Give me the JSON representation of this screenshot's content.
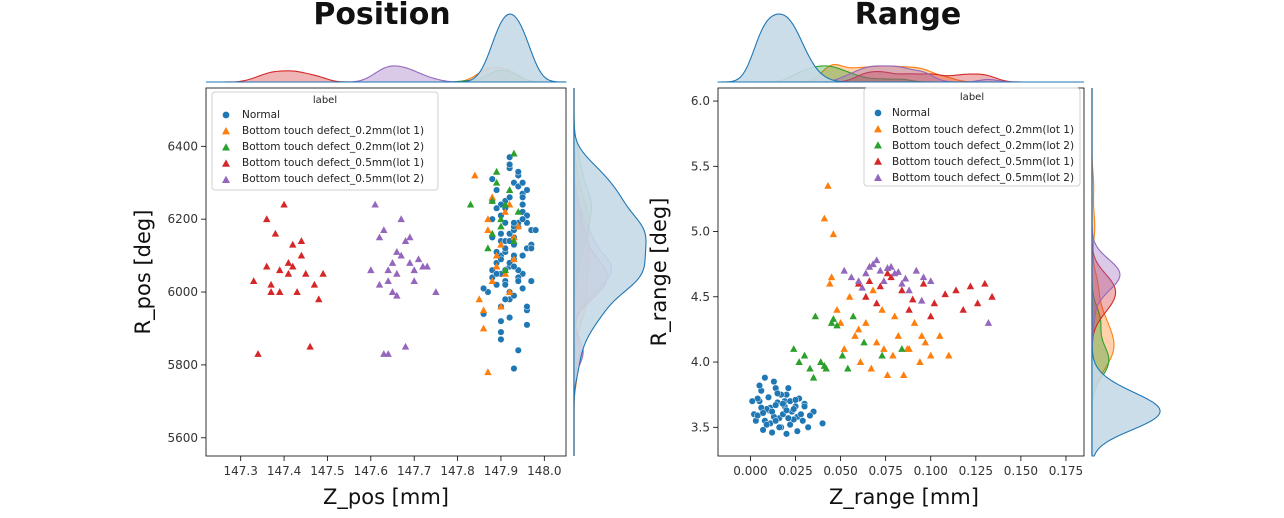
{
  "colors": {
    "normal": "#1f77b4",
    "bt02_lot1": "#ff7f0e",
    "bt02_lot2": "#2ca02c",
    "bt05_lot1": "#d62728",
    "bt05_lot2": "#9467bd",
    "kde_fill": "#c6d9e8"
  },
  "chart_data": [
    {
      "type": "scatter",
      "title": "Position",
      "xlabel": "Z_pos [mm]",
      "ylabel": "R_pos [deg]",
      "xlim": [
        147.22,
        148.05
      ],
      "ylim": [
        5550,
        6560
      ],
      "xticks": [
        147.3,
        147.4,
        147.5,
        147.6,
        147.7,
        147.8,
        147.9,
        148.0
      ],
      "xtick_labels": [
        "147.3",
        "147.4",
        "147.5",
        "147.6",
        "147.7",
        "147.8",
        "147.9",
        "148.0"
      ],
      "yticks": [
        5600,
        5800,
        6000,
        6200,
        6400
      ],
      "ytick_labels": [
        "5600",
        "5800",
        "6000",
        "6200",
        "6400"
      ],
      "legend": {
        "title": "label",
        "position": "top-left",
        "entries": [
          "Normal",
          "Bottom touch defect_0.2mm(lot 1)",
          "Bottom touch defect_0.2mm(lot 2)",
          "Bottom touch defect_0.5mm(lot 1)",
          "Bottom touch defect_0.5mm(lot 2)"
        ]
      },
      "series": [
        {
          "name": "Normal",
          "color_key": "normal",
          "marker": "circle",
          "x": [
            147.9,
            147.93,
            147.95,
            147.88,
            147.92,
            147.96,
            147.91,
            147.89,
            147.94,
            147.97,
            147.9,
            147.92,
            147.95,
            147.88,
            147.93,
            147.91,
            147.96,
            147.94,
            147.89,
            147.92,
            147.95,
            147.9,
            147.93,
            147.97,
            147.91,
            147.88,
            147.94,
            147.92,
            147.96,
            147.9,
            147.93,
            147.95,
            147.89,
            147.91,
            147.94,
            147.92,
            147.9,
            147.96,
            147.93,
            147.88,
            147.95,
            147.91,
            147.94,
            147.89,
            147.92,
            147.97,
            147.9,
            147.93,
            147.95,
            147.91,
            147.87,
            147.86,
            147.88,
            147.93,
            147.96,
            147.92,
            147.9,
            147.94,
            147.91,
            147.89,
            147.95,
            147.92,
            147.98,
            147.93,
            147.9,
            147.96,
            147.91,
            147.94,
            147.88,
            147.92,
            147.86,
            147.9,
            147.93,
            147.95,
            147.91,
            147.97,
            147.89,
            147.92,
            147.94,
            147.9,
            147.93,
            147.88,
            147.95,
            147.91,
            147.96,
            147.92,
            147.9,
            147.94,
            147.93,
            147.89
          ],
          "y": [
            6100,
            6150,
            6050,
            6200,
            6000,
            6120,
            6250,
            6080,
            6180,
            6030,
            6140,
            5980,
            6220,
            6060,
            6300,
            6110,
            5950,
            6190,
            6020,
            6160,
            6270,
            5920,
            6090,
            6130,
            6230,
            6040,
            6320,
            6070,
            6210,
            5890,
            6170,
            6010,
            6280,
            6120,
            6060,
            6340,
            5960,
            6190,
            6100,
            6150,
            6240,
            6030,
            6290,
            6080,
            6350,
            6170,
            5870,
            5990,
            6260,
            6140,
            6000,
            5940,
            6310,
            5790,
            5910,
            6370,
            6050,
            5840,
            6020,
            6110,
            6200,
            6080,
            6170,
            6130,
            6240,
            5960,
            6190,
            6040,
            6150,
            6260,
            6010,
            6090,
            6180,
            6300,
            6060,
            6120,
            6230,
            5930,
            6330,
            6160,
            6070,
            6250,
            6100,
            5980,
            6280,
            6140,
            6210,
            6030,
            6190,
            6050
          ]
        },
        {
          "name": "Bottom touch defect_0.2mm(lot 1)",
          "color_key": "bt02_lot1",
          "marker": "triangle",
          "x": [
            147.87,
            147.89,
            147.91,
            147.86,
            147.93,
            147.88,
            147.9,
            147.92,
            147.84,
            147.89,
            147.94,
            147.87,
            147.91,
            147.86,
            147.9,
            147.88,
            147.93,
            147.85,
            147.87,
            147.92
          ],
          "y": [
            6200,
            6100,
            6050,
            5900,
            6150,
            6260,
            5960,
            6000,
            6320,
            6070,
            6180,
            5780,
            6220,
            5950,
            6130,
            6030,
            6090,
            5980,
            6170,
            6240
          ]
        },
        {
          "name": "Bottom touch defect_0.2mm(lot 2)",
          "color_key": "bt02_lot2",
          "marker": "triangle",
          "x": [
            147.89,
            147.91,
            147.88,
            147.93,
            147.9,
            147.92,
            147.87,
            147.94,
            147.89,
            147.91,
            147.93,
            147.88,
            147.9,
            147.83
          ],
          "y": [
            6300,
            6240,
            6160,
            6380,
            6200,
            6280,
            6120,
            6220,
            6330,
            6060,
            6140,
            6250,
            6180,
            6240
          ]
        },
        {
          "name": "Bottom touch defect_0.5mm(lot 1)",
          "color_key": "bt05_lot1",
          "marker": "triangle",
          "x": [
            147.33,
            147.34,
            147.36,
            147.37,
            147.38,
            147.39,
            147.4,
            147.41,
            147.42,
            147.43,
            147.44,
            147.45,
            147.46,
            147.47,
            147.48,
            147.49,
            147.36,
            147.37,
            147.39,
            147.42,
            147.44,
            147.41
          ],
          "y": [
            6030,
            5830,
            6200,
            6000,
            6160,
            6060,
            6240,
            6080,
            6070,
            6000,
            6140,
            6050,
            5850,
            6020,
            5980,
            6050,
            6070,
            6020,
            6000,
            6130,
            6100,
            6050
          ]
        },
        {
          "name": "Bottom touch defect_0.5mm(lot 2)",
          "color_key": "bt05_lot2",
          "marker": "triangle",
          "x": [
            147.6,
            147.61,
            147.62,
            147.63,
            147.64,
            147.65,
            147.66,
            147.67,
            147.68,
            147.69,
            147.7,
            147.71,
            147.72,
            147.73,
            147.75,
            147.64,
            147.66,
            147.68,
            147.63,
            147.65,
            147.67,
            147.69,
            147.62,
            147.66,
            147.7,
            147.64
          ],
          "y": [
            6060,
            6240,
            6020,
            6170,
            5830,
            6080,
            6050,
            6200,
            6140,
            6080,
            6060,
            6090,
            6070,
            6070,
            6000,
            6030,
            6110,
            5850,
            5830,
            6000,
            6100,
            6150,
            6150,
            5990,
            6030,
            6060
          ]
        }
      ],
      "marginal": "kde"
    },
    {
      "type": "scatter",
      "title": "Range",
      "xlabel": "Z_range [mm]",
      "ylabel": "R_range [deg]",
      "xlim": [
        -0.018,
        0.185
      ],
      "ylim": [
        3.28,
        6.1
      ],
      "xticks": [
        0.0,
        0.025,
        0.05,
        0.075,
        0.1,
        0.125,
        0.15,
        0.175
      ],
      "xtick_labels": [
        "0.000",
        "0.025",
        "0.050",
        "0.075",
        "0.100",
        "0.125",
        "0.150",
        "0.175"
      ],
      "yticks": [
        3.5,
        4.0,
        4.5,
        5.0,
        5.5,
        6.0
      ],
      "ytick_labels": [
        "3.5",
        "4.0",
        "4.5",
        "5.0",
        "5.5",
        "6.0"
      ],
      "legend": {
        "title": "label",
        "position": "top-right",
        "entries": [
          "Normal",
          "Bottom touch defect_0.2mm(lot 1)",
          "Bottom touch defect_0.2mm(lot 2)",
          "Bottom touch defect_0.5mm(lot 1)",
          "Bottom touch defect_0.5mm(lot 2)"
        ]
      },
      "series": [
        {
          "name": "Normal",
          "color_key": "normal",
          "marker": "circle",
          "x": [
            0.002,
            0.005,
            0.008,
            0.011,
            0.014,
            0.017,
            0.02,
            0.023,
            0.026,
            0.03,
            0.004,
            0.007,
            0.01,
            0.013,
            0.016,
            0.019,
            0.022,
            0.025,
            0.028,
            0.032,
            0.003,
            0.006,
            0.009,
            0.012,
            0.015,
            0.018,
            0.021,
            0.024,
            0.027,
            0.035,
            0.001,
            0.004,
            0.008,
            0.011,
            0.014,
            0.017,
            0.02,
            0.023,
            0.029,
            0.04,
            0.006,
            0.01,
            0.013,
            0.016,
            0.019,
            0.022,
            0.026,
            0.009,
            0.012,
            0.015,
            0.018,
            0.021,
            0.024,
            0.007,
            0.005,
            0.03,
            0.033,
            0.025,
            0.02,
            0.014
          ],
          "y": [
            3.6,
            3.7,
            3.55,
            3.65,
            3.8,
            3.5,
            3.75,
            3.62,
            3.58,
            3.68,
            3.72,
            3.48,
            3.63,
            3.85,
            3.57,
            3.7,
            3.52,
            3.66,
            3.6,
            3.5,
            3.55,
            3.78,
            3.64,
            3.46,
            3.69,
            3.6,
            3.8,
            3.56,
            3.72,
            3.62,
            3.7,
            3.59,
            3.88,
            3.53,
            3.67,
            3.75,
            3.45,
            3.62,
            3.55,
            3.53,
            3.65,
            3.73,
            3.58,
            3.5,
            3.66,
            3.7,
            3.47,
            3.52,
            3.62,
            3.76,
            3.68,
            3.57,
            3.64,
            3.61,
            3.82,
            3.66,
            3.59,
            3.71,
            3.63,
            3.55
          ]
        },
        {
          "name": "Bottom touch defect_0.2mm(lot 1)",
          "color_key": "bt02_lot1",
          "marker": "triangle",
          "x": [
            0.043,
            0.046,
            0.041,
            0.044,
            0.048,
            0.052,
            0.055,
            0.058,
            0.061,
            0.064,
            0.067,
            0.07,
            0.073,
            0.076,
            0.079,
            0.082,
            0.085,
            0.088,
            0.091,
            0.094,
            0.097,
            0.1,
            0.105,
            0.11,
            0.045,
            0.05,
            0.06,
            0.068,
            0.074,
            0.08,
            0.087,
            0.095
          ],
          "y": [
            5.35,
            4.98,
            5.1,
            4.6,
            4.4,
            4.1,
            4.5,
            4.2,
            4.0,
            4.3,
            3.95,
            4.15,
            4.4,
            3.9,
            4.05,
            4.2,
            3.9,
            4.1,
            4.3,
            4.0,
            4.15,
            4.05,
            4.2,
            4.05,
            4.65,
            4.3,
            4.25,
            4.55,
            4.1,
            4.35,
            4.1,
            4.2
          ]
        },
        {
          "name": "Bottom touch defect_0.2mm(lot 2)",
          "color_key": "bt02_lot2",
          "marker": "triangle",
          "x": [
            0.024,
            0.027,
            0.03,
            0.033,
            0.036,
            0.039,
            0.042,
            0.045,
            0.048,
            0.051,
            0.054,
            0.057,
            0.035,
            0.041,
            0.046,
            0.063,
            0.073,
            0.084
          ],
          "y": [
            4.1,
            4.0,
            4.05,
            3.95,
            4.35,
            4.0,
            3.95,
            4.3,
            4.28,
            4.05,
            3.95,
            4.35,
            3.88,
            3.97,
            4.33,
            4.15,
            4.05,
            4.1
          ]
        },
        {
          "name": "Bottom touch defect_0.5mm(lot 1)",
          "color_key": "bt05_lot1",
          "marker": "triangle",
          "x": [
            0.06,
            0.066,
            0.072,
            0.078,
            0.084,
            0.09,
            0.096,
            0.102,
            0.108,
            0.114,
            0.118,
            0.122,
            0.126,
            0.13,
            0.134,
            0.064,
            0.07,
            0.076,
            0.088,
            0.1
          ],
          "y": [
            4.6,
            4.62,
            4.58,
            4.65,
            4.55,
            4.48,
            4.6,
            4.45,
            4.52,
            4.55,
            4.4,
            4.58,
            4.45,
            4.6,
            4.5,
            4.5,
            4.45,
            4.68,
            4.4,
            4.35
          ]
        },
        {
          "name": "Bottom touch defect_0.5mm(lot 2)",
          "color_key": "bt05_lot2",
          "marker": "triangle",
          "x": [
            0.052,
            0.056,
            0.06,
            0.064,
            0.068,
            0.072,
            0.076,
            0.08,
            0.084,
            0.088,
            0.092,
            0.096,
            0.1,
            0.07,
            0.074,
            0.078,
            0.082,
            0.086,
            0.062,
            0.066,
            0.132,
            0.095
          ],
          "y": [
            4.7,
            4.65,
            4.62,
            4.68,
            4.75,
            4.7,
            4.72,
            4.68,
            4.6,
            4.55,
            4.7,
            4.65,
            4.62,
            4.78,
            4.62,
            4.73,
            4.69,
            4.64,
            4.57,
            4.73,
            4.3,
            4.47
          ]
        }
      ],
      "marginal": "kde"
    }
  ]
}
